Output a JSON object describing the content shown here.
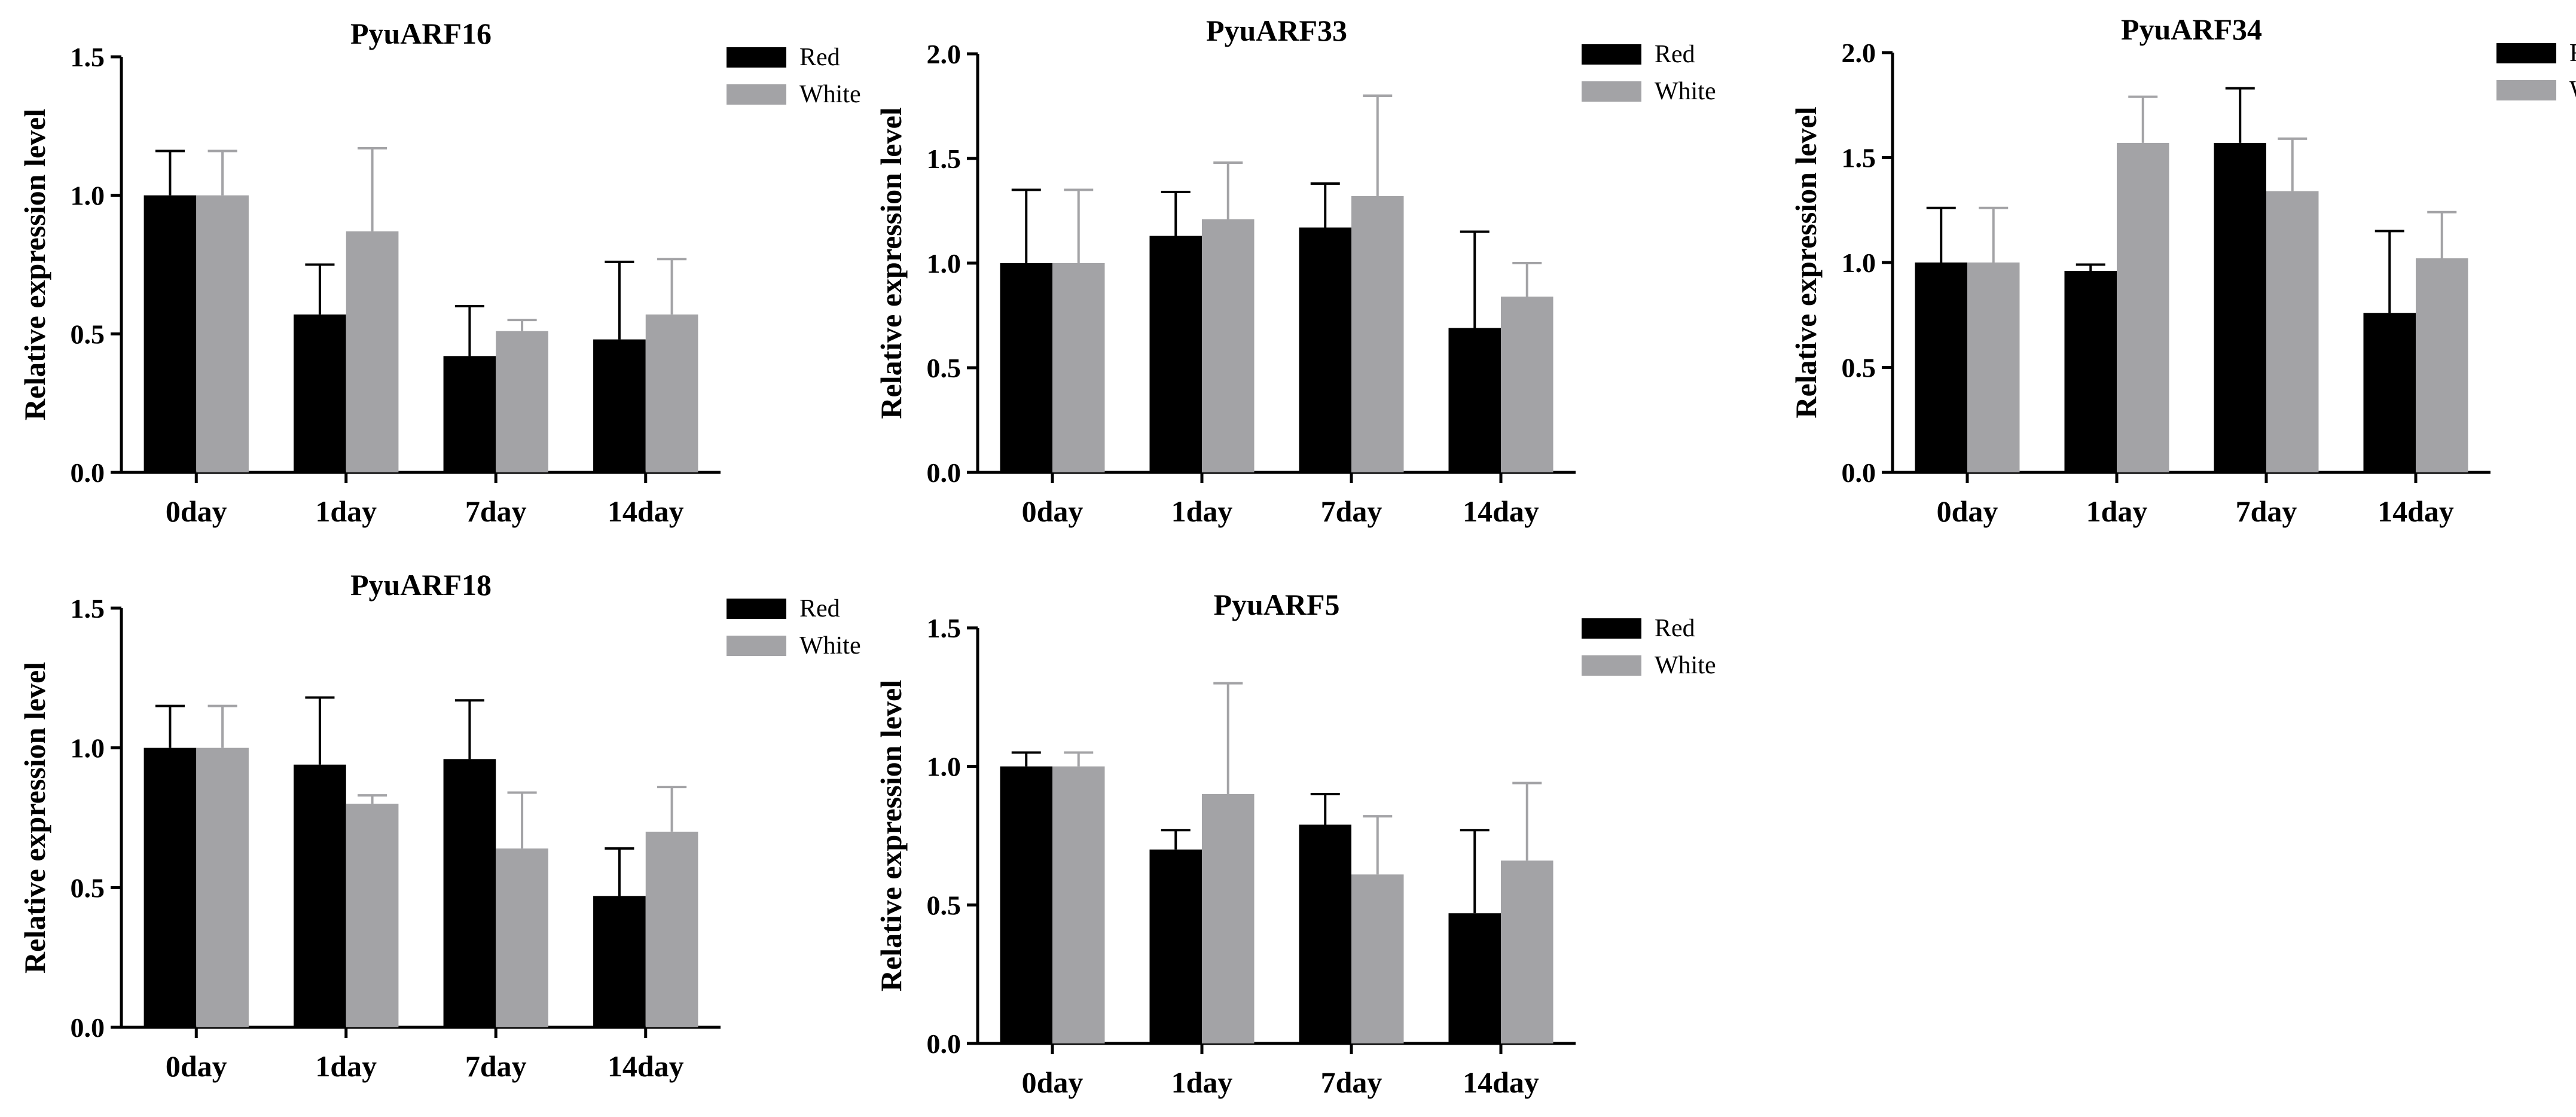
{
  "colors": {
    "red_series": "#000000",
    "white_series": "#a3a3a6",
    "axis": "#000000"
  },
  "chart_data": [
    {
      "type": "bar",
      "title": "PyuARF16",
      "xlabel": "",
      "ylabel": "Relative expression level",
      "ylim": [
        0,
        1.5
      ],
      "yticks": [
        "0.0",
        "0.5",
        "1.0",
        "1.5"
      ],
      "categories": [
        "0day",
        "1day",
        "7day",
        "14day"
      ],
      "legend": "top-right",
      "series": [
        {
          "name": "Red",
          "values": [
            1.0,
            0.57,
            0.42,
            0.48
          ],
          "errors": [
            0.16,
            0.18,
            0.18,
            0.28
          ]
        },
        {
          "name": "White",
          "values": [
            1.0,
            0.87,
            0.51,
            0.57
          ],
          "errors": [
            0.16,
            0.3,
            0.04,
            0.2
          ]
        }
      ]
    },
    {
      "type": "bar",
      "title": "PyuARF33",
      "xlabel": "",
      "ylabel": "Relative expression level",
      "ylim": [
        0,
        2.0
      ],
      "yticks": [
        "0.0",
        "0.5",
        "1.0",
        "1.5",
        "2.0"
      ],
      "categories": [
        "0day",
        "1day",
        "7day",
        "14day"
      ],
      "legend": "top-right",
      "series": [
        {
          "name": "Red",
          "values": [
            1.0,
            1.13,
            1.17,
            0.69
          ],
          "errors": [
            0.35,
            0.21,
            0.21,
            0.46
          ]
        },
        {
          "name": "White",
          "values": [
            1.0,
            1.21,
            1.32,
            0.84
          ],
          "errors": [
            0.35,
            0.27,
            0.48,
            0.16
          ]
        }
      ]
    },
    {
      "type": "bar",
      "title": "PyuARF34",
      "xlabel": "",
      "ylabel": "Relative expression level",
      "ylim": [
        0,
        2.0
      ],
      "yticks": [
        "0.0",
        "0.5",
        "1.0",
        "1.5",
        "2.0"
      ],
      "categories": [
        "0day",
        "1day",
        "7day",
        "14day"
      ],
      "legend": "top-right",
      "series": [
        {
          "name": "Red",
          "values": [
            1.0,
            0.96,
            1.57,
            0.76
          ],
          "errors": [
            0.26,
            0.03,
            0.26,
            0.39
          ]
        },
        {
          "name": "White",
          "values": [
            1.0,
            1.57,
            1.34,
            1.02
          ],
          "errors": [
            0.26,
            0.22,
            0.25,
            0.22
          ]
        }
      ]
    },
    {
      "type": "bar",
      "title": "PyuARF18",
      "xlabel": "",
      "ylabel": "Relative expression level",
      "ylim": [
        0,
        1.5
      ],
      "yticks": [
        "0.0",
        "0.5",
        "1.0",
        "1.5"
      ],
      "categories": [
        "0day",
        "1day",
        "7day",
        "14day"
      ],
      "legend": "top-right",
      "series": [
        {
          "name": "Red",
          "values": [
            1.0,
            0.94,
            0.96,
            0.47
          ],
          "errors": [
            0.15,
            0.24,
            0.21,
            0.17
          ]
        },
        {
          "name": "White",
          "values": [
            1.0,
            0.8,
            0.64,
            0.7
          ],
          "errors": [
            0.15,
            0.03,
            0.2,
            0.16
          ]
        }
      ]
    },
    {
      "type": "bar",
      "title": "PyuARF5",
      "xlabel": "",
      "ylabel": "Relative expression level",
      "ylim": [
        0,
        1.5
      ],
      "yticks": [
        "0.0",
        "0.5",
        "1.0",
        "1.5"
      ],
      "categories": [
        "0day",
        "1day",
        "7day",
        "14day"
      ],
      "legend": "top-right",
      "series": [
        {
          "name": "Red",
          "values": [
            1.0,
            0.7,
            0.79,
            0.47
          ],
          "errors": [
            0.05,
            0.07,
            0.11,
            0.3
          ]
        },
        {
          "name": "White",
          "values": [
            1.0,
            0.9,
            0.61,
            0.66
          ],
          "errors": [
            0.05,
            0.4,
            0.21,
            0.28
          ]
        }
      ]
    }
  ]
}
